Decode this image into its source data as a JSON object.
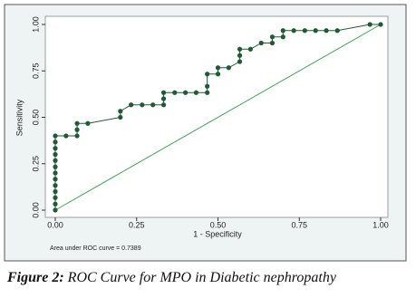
{
  "chart_data": {
    "type": "line",
    "y_label": "Sensitivity",
    "x_label": "1 - Specificity",
    "annotation": "Area under ROC curve = 0.7389",
    "caption_label": "Figure 2:",
    "caption_text": "ROC Curve for MPO in Diabetic nephropathy",
    "xlim": [
      0,
      1
    ],
    "ylim": [
      0,
      1
    ],
    "xticks": [
      {
        "value": 0,
        "label": "0.00"
      },
      {
        "value": 0.25,
        "label": "0.25"
      },
      {
        "value": 0.5,
        "label": "0.50"
      },
      {
        "value": 0.75,
        "label": "0.75"
      },
      {
        "value": 1,
        "label": "1.00"
      }
    ],
    "yticks": [
      {
        "value": 0,
        "label": "0.00"
      },
      {
        "value": 0.25,
        "label": "0.25"
      },
      {
        "value": 0.5,
        "label": "0.50"
      },
      {
        "value": 0.75,
        "label": "0.75"
      },
      {
        "value": 1,
        "label": "1.00"
      }
    ],
    "reference_color": "#3aa655",
    "series": [
      {
        "color": "#1f5a35",
        "x": [
          0,
          0,
          0,
          0,
          0,
          0,
          0,
          0,
          0,
          0,
          0,
          0,
          0,
          0.033,
          0.067,
          0.067,
          0.067,
          0.1,
          0.2,
          0.2,
          0.233,
          0.267,
          0.3,
          0.333,
          0.333,
          0.333,
          0.367,
          0.4,
          0.433,
          0.467,
          0.467,
          0.467,
          0.5,
          0.5,
          0.533,
          0.567,
          0.567,
          0.567,
          0.6,
          0.633,
          0.667,
          0.667,
          0.7,
          0.7,
          0.733,
          0.767,
          0.8,
          0.833,
          0.867,
          0.967,
          1
        ],
        "values": [
          0,
          0.033,
          0.067,
          0.1,
          0.133,
          0.167,
          0.2,
          0.233,
          0.267,
          0.3,
          0.333,
          0.367,
          0.4,
          0.4,
          0.4,
          0.433,
          0.467,
          0.467,
          0.5,
          0.533,
          0.567,
          0.567,
          0.567,
          0.567,
          0.6,
          0.633,
          0.633,
          0.633,
          0.633,
          0.633,
          0.667,
          0.733,
          0.733,
          0.767,
          0.767,
          0.8,
          0.833,
          0.867,
          0.867,
          0.9,
          0.9,
          0.933,
          0.933,
          0.967,
          0.967,
          0.967,
          0.967,
          0.967,
          0.967,
          1,
          1
        ]
      }
    ]
  }
}
